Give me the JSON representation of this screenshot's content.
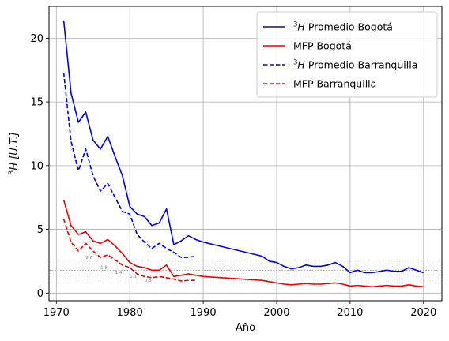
{
  "chart_data": {
    "type": "line",
    "title": "",
    "xlabel": "Año",
    "ylabel_base": "H [U.T.]",
    "ylabel_sup": "3",
    "xlim": [
      1969,
      2022.5
    ],
    "ylim": [
      -0.6,
      22.5
    ],
    "x_ticks": [
      1970,
      1980,
      1990,
      2000,
      2010,
      2020
    ],
    "y_ticks": [
      0,
      5,
      10,
      15,
      20
    ],
    "grid": true,
    "legend_position": "top-right",
    "reference_lines": [
      {
        "value": 2.6,
        "label": "2.6",
        "label_x": 1974
      },
      {
        "value": 1.8,
        "label": "1.8",
        "label_x": 1976
      },
      {
        "value": 1.4,
        "label": "1.4",
        "label_x": 1978
      },
      {
        "value": 1.1,
        "label": "1.1",
        "label_x": 1980
      },
      {
        "value": 0.8,
        "label": "0.8",
        "label_x": 1982
      }
    ],
    "series": [
      {
        "name": "Promedio Bogotá",
        "name_prefix_sup": "3",
        "name_prefix_base": "H",
        "color": "#0000ee",
        "dash": false,
        "x": [
          1971,
          1972,
          1973,
          1974,
          1975,
          1976,
          1977,
          1978,
          1979,
          1980,
          1981,
          1982,
          1983,
          1984,
          1985,
          1986,
          1987,
          1988,
          1989,
          1990,
          1998,
          1999,
          2000,
          2001,
          2002,
          2003,
          2004,
          2005,
          2006,
          2007,
          2008,
          2009,
          2010,
          2011,
          2012,
          2013,
          2014,
          2015,
          2016,
          2017,
          2018,
          2019,
          2020
        ],
        "values": [
          21.4,
          15.7,
          13.4,
          14.2,
          12.0,
          11.3,
          12.3,
          10.7,
          9.2,
          6.8,
          6.2,
          6.0,
          5.3,
          5.5,
          6.6,
          3.8,
          4.1,
          4.5,
          4.2,
          4.0,
          2.9,
          2.5,
          2.4,
          2.1,
          1.9,
          2.0,
          2.2,
          2.1,
          2.1,
          2.2,
          2.4,
          2.1,
          1.6,
          1.8,
          1.6,
          1.6,
          1.7,
          1.8,
          1.7,
          1.7,
          2.0,
          1.8,
          1.6
        ]
      },
      {
        "name": "MFP Bogotá",
        "color": "#ee0000",
        "dash": false,
        "x": [
          1971,
          1972,
          1973,
          1974,
          1975,
          1976,
          1977,
          1978,
          1979,
          1980,
          1981,
          1982,
          1983,
          1984,
          1985,
          1986,
          1987,
          1988,
          1989,
          1990,
          1998,
          1999,
          2000,
          2001,
          2002,
          2003,
          2004,
          2005,
          2006,
          2007,
          2008,
          2009,
          2010,
          2011,
          2012,
          2013,
          2014,
          2015,
          2016,
          2017,
          2018,
          2019,
          2020
        ],
        "values": [
          7.3,
          5.3,
          4.6,
          4.8,
          4.1,
          3.9,
          4.2,
          3.7,
          3.1,
          2.4,
          2.1,
          2.0,
          1.8,
          1.8,
          2.2,
          1.3,
          1.4,
          1.5,
          1.4,
          1.3,
          1.0,
          0.9,
          0.8,
          0.7,
          0.65,
          0.7,
          0.75,
          0.7,
          0.7,
          0.75,
          0.8,
          0.7,
          0.55,
          0.6,
          0.55,
          0.5,
          0.55,
          0.6,
          0.55,
          0.55,
          0.65,
          0.55,
          0.5
        ]
      },
      {
        "name": "Promedio Barranquilla",
        "name_prefix_sup": "3",
        "name_prefix_base": "H",
        "color": "#0000ee",
        "dash": true,
        "x": [
          1971,
          1972,
          1973,
          1974,
          1975,
          1976,
          1977,
          1978,
          1979,
          1980,
          1981,
          1982,
          1983,
          1984,
          1985,
          1986,
          1987,
          1988,
          1989
        ],
        "values": [
          17.3,
          11.9,
          9.6,
          11.3,
          9.2,
          8.0,
          8.6,
          7.5,
          6.4,
          6.2,
          4.6,
          4.0,
          3.5,
          3.9,
          3.5,
          3.2,
          2.8,
          2.8,
          2.9
        ]
      },
      {
        "name": "MFP Barranquilla",
        "color": "#ee0000",
        "dash": true,
        "x": [
          1971,
          1972,
          1973,
          1974,
          1975,
          1976,
          1977,
          1978,
          1979,
          1980,
          1981,
          1982,
          1983,
          1984,
          1985,
          1986,
          1987,
          1988,
          1989
        ],
        "values": [
          5.8,
          4.0,
          3.3,
          3.9,
          3.3,
          2.8,
          3.0,
          2.6,
          2.2,
          2.0,
          1.5,
          1.3,
          1.2,
          1.3,
          1.2,
          1.1,
          0.95,
          1.0,
          1.0
        ]
      }
    ]
  }
}
